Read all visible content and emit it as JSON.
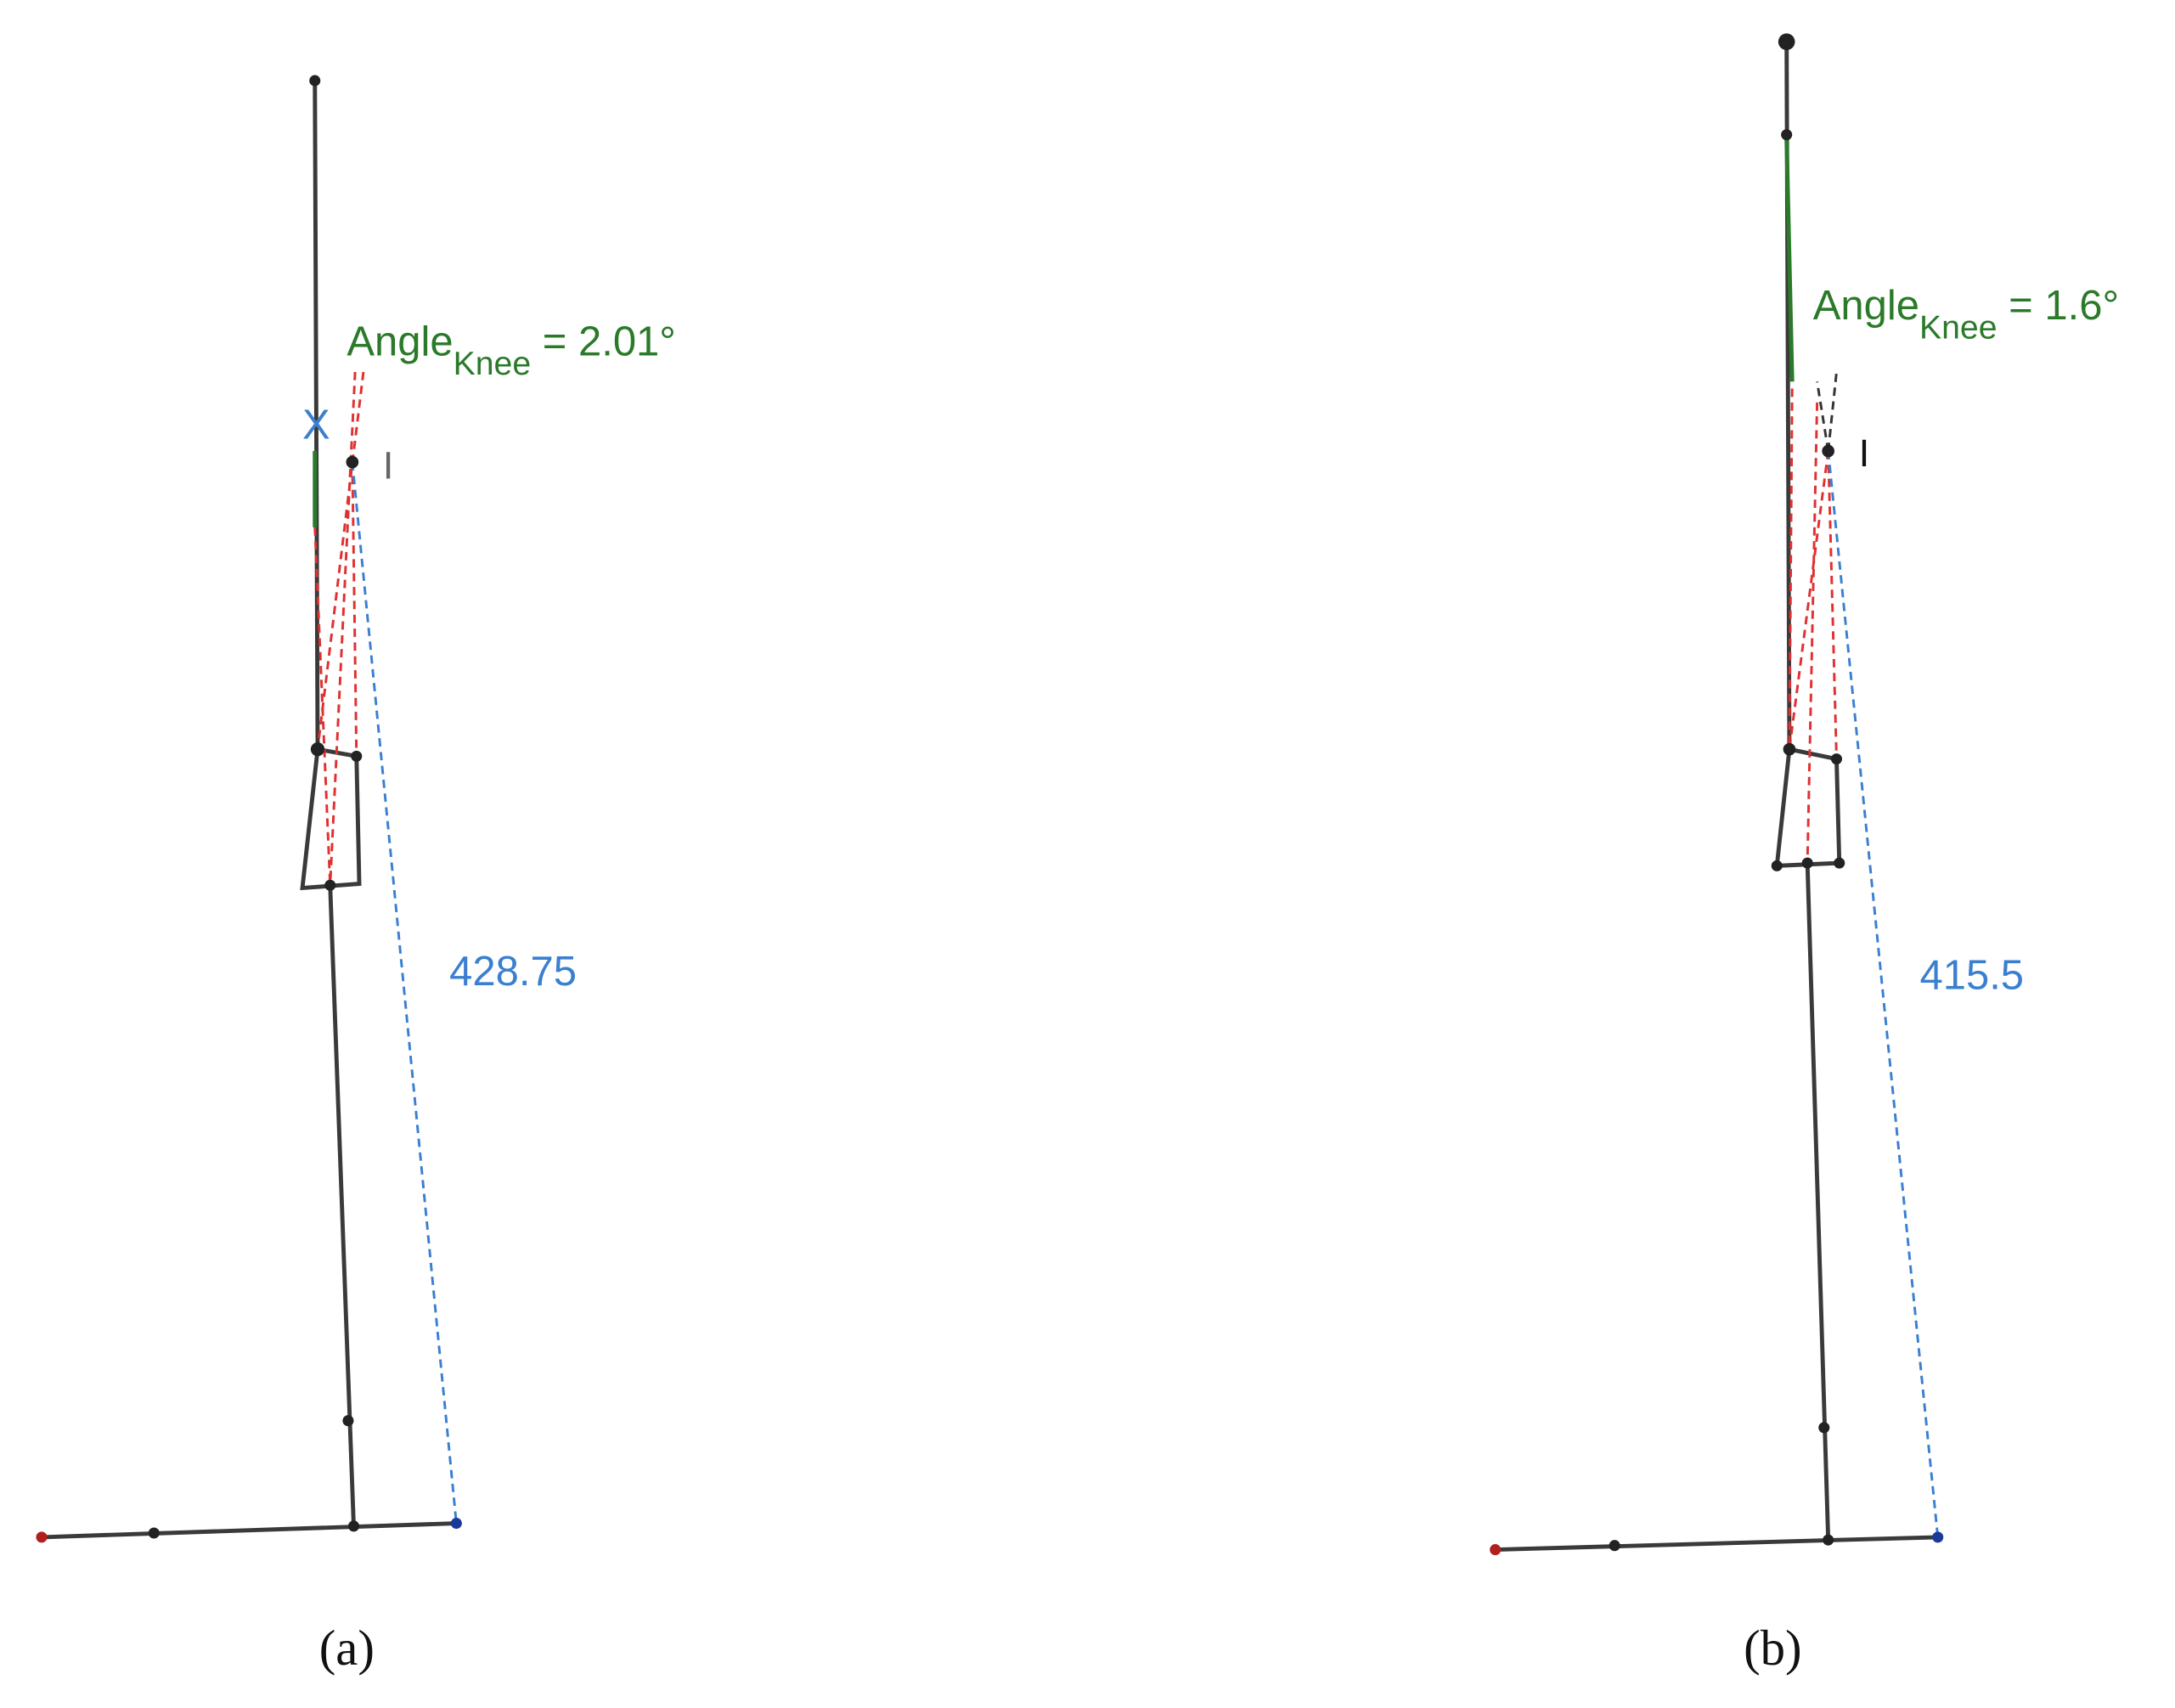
{
  "panels": [
    {
      "caption": "(a)",
      "angle_label": {
        "base": "Angle",
        "subscript": "Knee",
        "value": " = 2.01°"
      },
      "point_label": "I",
      "marker_label": "X",
      "distance_label": "428.75"
    },
    {
      "caption": "(b)",
      "angle_label": {
        "base": "Angle",
        "subscript": "Knee",
        "value": " = 1.6°"
      },
      "point_label": "I",
      "distance_label": "415.5"
    }
  ]
}
